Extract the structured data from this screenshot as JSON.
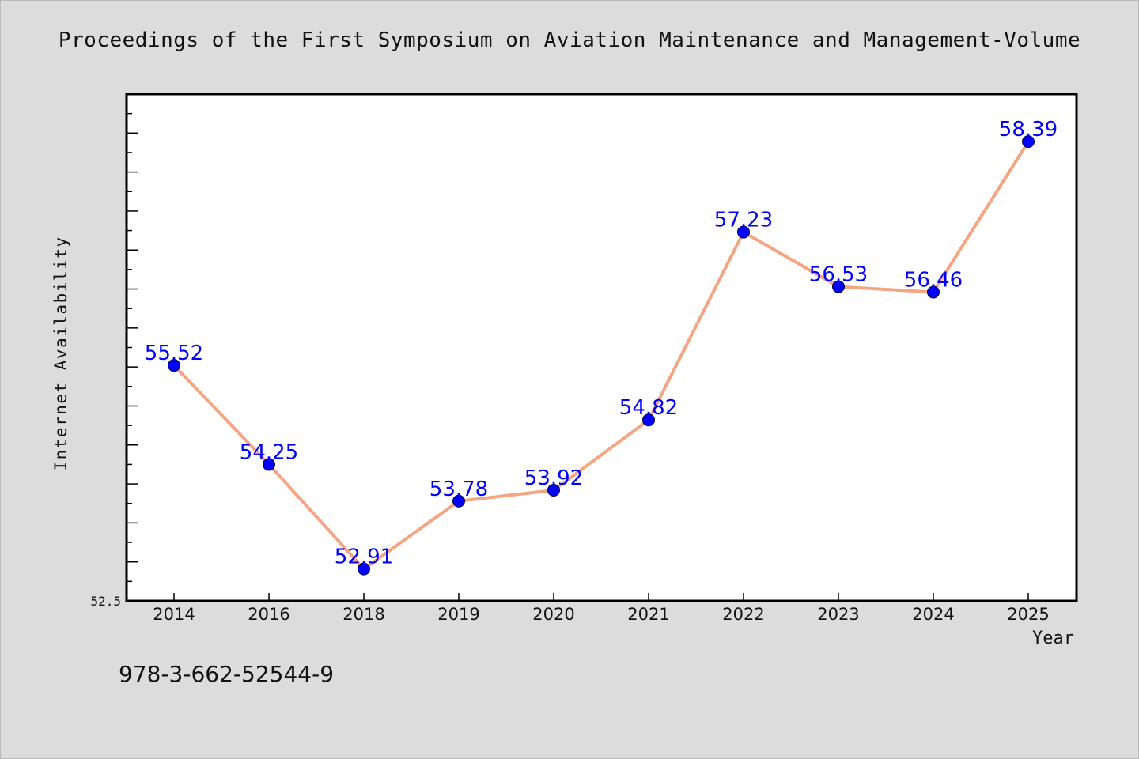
{
  "chart_data": {
    "type": "line",
    "title": "Proceedings of the First Symposium on Aviation Maintenance and Management-Volume",
    "xlabel": "Year",
    "ylabel": "Internet Availability",
    "categories": [
      "2014",
      "2016",
      "2018",
      "2019",
      "2020",
      "2021",
      "2022",
      "2023",
      "2024",
      "2025"
    ],
    "series": [
      {
        "values": [
          55.52,
          54.25,
          52.91,
          53.78,
          53.92,
          54.82,
          57.23,
          56.53,
          56.46,
          58.39
        ]
      }
    ],
    "data_labels": [
      "55.52",
      "54.25",
      "52.91",
      "53.78",
      "53.92",
      "54.82",
      "57.23",
      "56.53",
      "56.46",
      "58.39"
    ],
    "ylim": [
      52.5,
      59.0
    ],
    "ytick_label": "52.5",
    "grid": false,
    "legend": "none",
    "colors": {
      "line": "#f4a582",
      "marker": "#0000ff",
      "label": "#0000ff",
      "plot_background": "#ffffff",
      "page_background": "#dcdcdc"
    }
  },
  "footer": {
    "isbn": "978-3-662-52544-9"
  }
}
